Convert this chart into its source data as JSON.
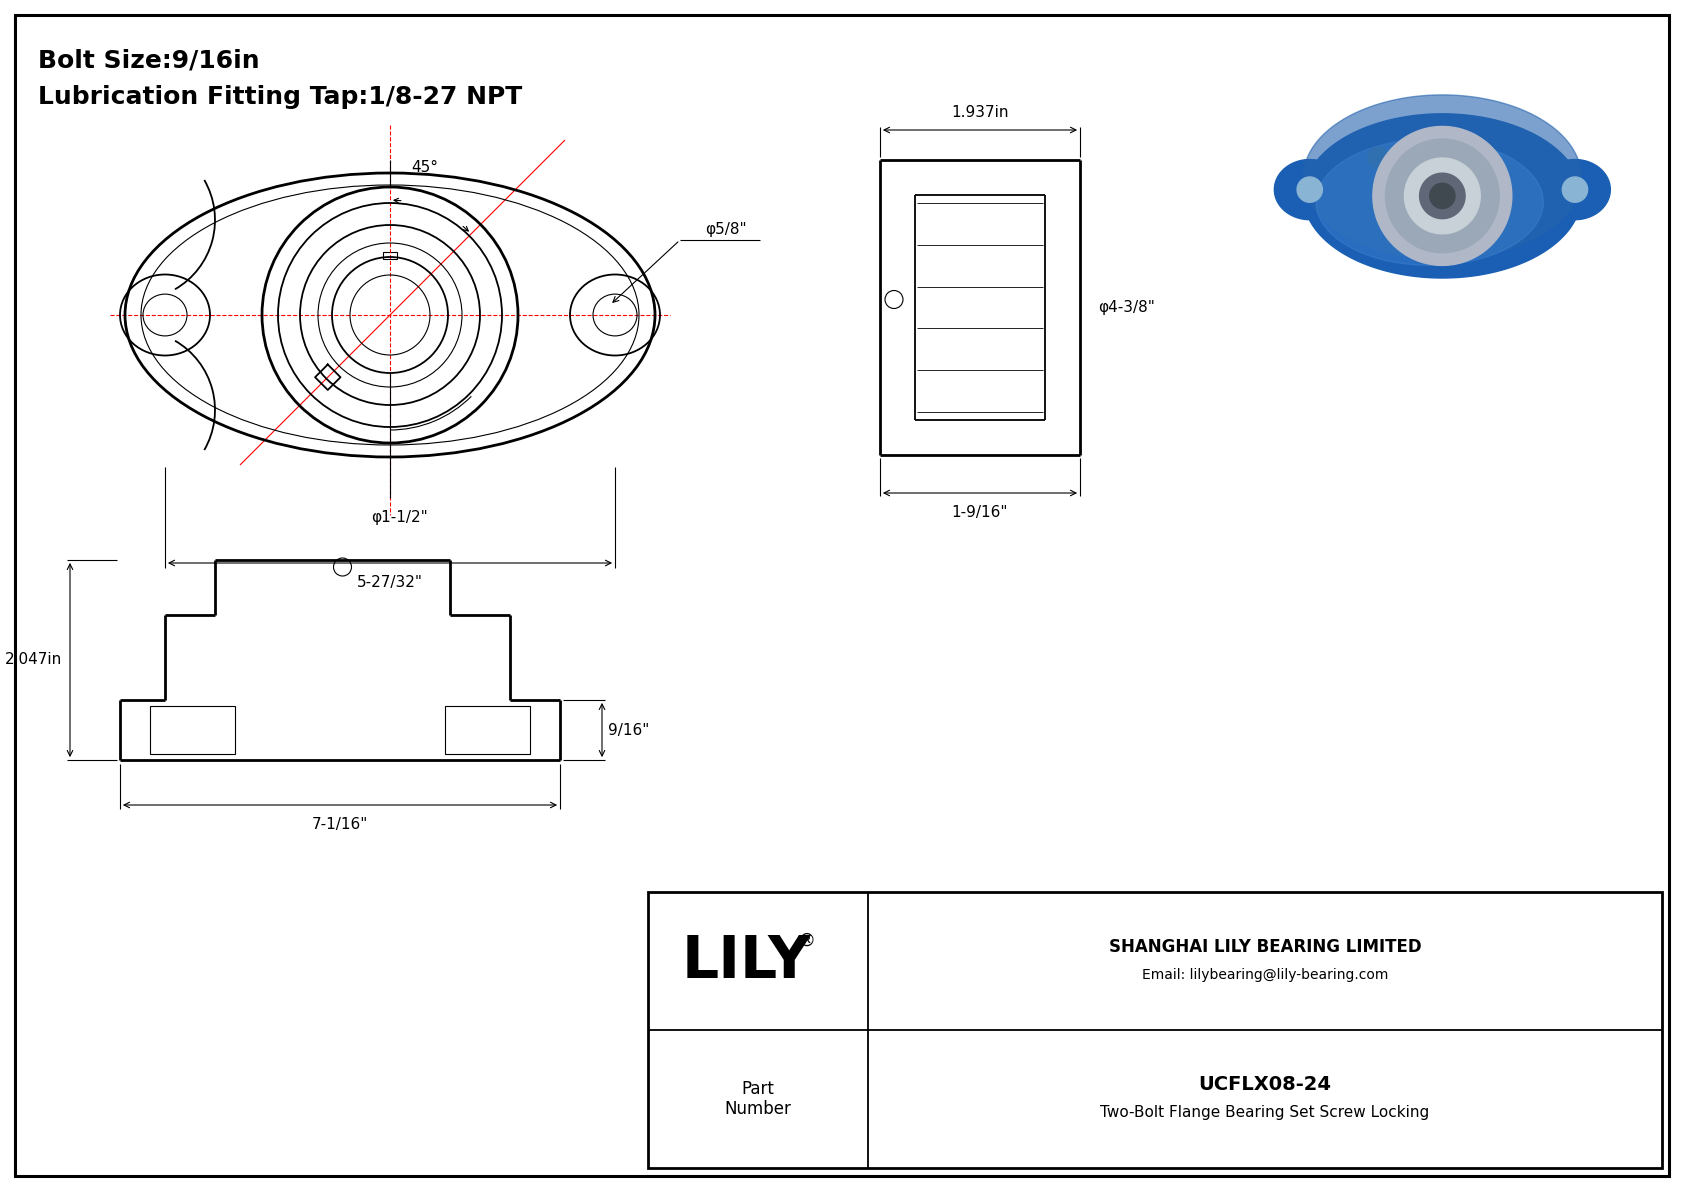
{
  "bg_color": "#ffffff",
  "line_color": "#000000",
  "red_color": "#ff0000",
  "title_line1": "Bolt Size:9/16in",
  "title_line2": "Lubrication Fitting Tap:1/8-27 NPT",
  "title_fontsize": 18,
  "dim_fontsize": 11,
  "company_reg": "®",
  "company_full": "SHANGHAI LILY BEARING LIMITED",
  "company_email": "Email: lilybearing@lily-bearing.com",
  "part_label": "Part\nNumber",
  "part_number": "UCFLX08-24",
  "part_desc": "Two-Bolt Flange Bearing Set Screw Locking",
  "dim_5_27_32": "5-27/32\"",
  "dim_1_1_2": "φ1-1/2\"",
  "dim_5_8": "φ5/8\"",
  "dim_45": "45°",
  "dim_1_937": "1.937in",
  "dim_4_3_8": "φ4-3/8\"",
  "dim_1_9_16": "1-9/16\"",
  "dim_2_047": "2.047in",
  "dim_9_16": "9/16\"",
  "dim_7_1_16": "7-1/16\""
}
